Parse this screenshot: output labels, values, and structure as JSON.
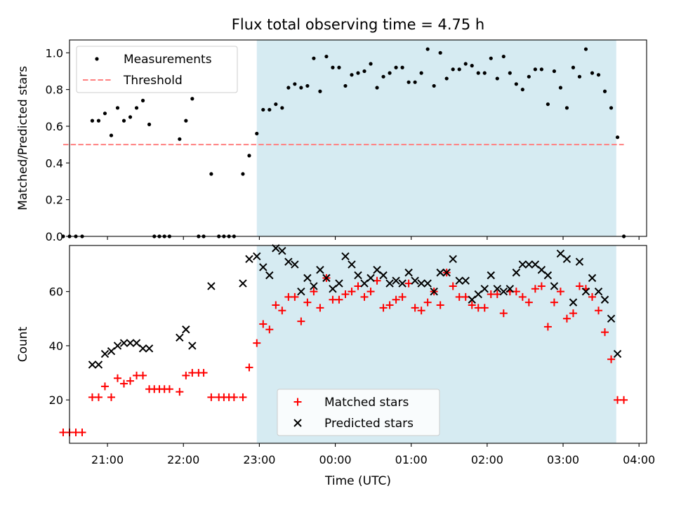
{
  "chart_data": [
    {
      "type": "scatter",
      "title": "Flux total observing time = 4.75 h",
      "xlabel": "",
      "ylabel": "Matched/Predicted stars",
      "x_unit": "hours since 20:00 UTC",
      "xlim": [
        20.5,
        28.1
      ],
      "ylim": [
        0.0,
        1.07
      ],
      "yticks": [
        0.0,
        0.2,
        0.4,
        0.6,
        0.8,
        1.0
      ],
      "ytick_labels": [
        "0.0",
        "0.2",
        "0.4",
        "0.6",
        "0.8",
        "1.0"
      ],
      "shaded_region": {
        "x_start": "22:58",
        "x_end": "03:42",
        "color": "#add8e6"
      },
      "threshold": {
        "name": "Threshold",
        "y": 0.5,
        "x_start": "20:25",
        "x_end": "03:48",
        "color": "#ff8080"
      },
      "legend": {
        "placement": "top-left",
        "entries": [
          "Measurements",
          "Threshold"
        ]
      },
      "series": [
        {
          "name": "Measurements",
          "color": "#000000",
          "points": [
            [
              "20:25",
              0
            ],
            [
              "20:30",
              0
            ],
            [
              "20:35",
              0
            ],
            [
              "20:40",
              0
            ],
            [
              "20:48",
              0.63
            ],
            [
              "20:53",
              0.63
            ],
            [
              "20:58",
              0.67
            ],
            [
              "21:03",
              0.55
            ],
            [
              "21:08",
              0.7
            ],
            [
              "21:13",
              0.63
            ],
            [
              "21:18",
              0.65
            ],
            [
              "21:23",
              0.7
            ],
            [
              "21:28",
              0.74
            ],
            [
              "21:33",
              0.61
            ],
            [
              "21:37",
              0
            ],
            [
              "21:41",
              0
            ],
            [
              "21:45",
              0
            ],
            [
              "21:49",
              0
            ],
            [
              "21:57",
              0.53
            ],
            [
              "22:02",
              0.63
            ],
            [
              "22:07",
              0.75
            ],
            [
              "22:12",
              0
            ],
            [
              "22:16",
              0
            ],
            [
              "22:22",
              0.34
            ],
            [
              "22:28",
              0
            ],
            [
              "22:32",
              0
            ],
            [
              "22:36",
              0
            ],
            [
              "22:40",
              0
            ],
            [
              "22:47",
              0.34
            ],
            [
              "22:52",
              0.44
            ],
            [
              "22:58",
              0.56
            ],
            [
              "23:03",
              0.69
            ],
            [
              "23:08",
              0.69
            ],
            [
              "23:13",
              0.72
            ],
            [
              "23:18",
              0.7
            ],
            [
              "23:23",
              0.81
            ],
            [
              "23:28",
              0.83
            ],
            [
              "23:33",
              0.81
            ],
            [
              "23:38",
              0.82
            ],
            [
              "23:43",
              0.97
            ],
            [
              "23:48",
              0.79
            ],
            [
              "23:53",
              0.98
            ],
            [
              "23:58",
              0.92
            ],
            [
              "00:03",
              0.92
            ],
            [
              "00:08",
              0.82
            ],
            [
              "00:13",
              0.88
            ],
            [
              "00:18",
              0.89
            ],
            [
              "00:23",
              0.9
            ],
            [
              "00:28",
              0.94
            ],
            [
              "00:33",
              0.81
            ],
            [
              "00:38",
              0.87
            ],
            [
              "00:43",
              0.89
            ],
            [
              "00:48",
              0.92
            ],
            [
              "00:53",
              0.92
            ],
            [
              "00:58",
              0.84
            ],
            [
              "01:03",
              0.84
            ],
            [
              "01:08",
              0.89
            ],
            [
              "01:13",
              1.02
            ],
            [
              "01:18",
              0.82
            ],
            [
              "01:23",
              1.0
            ],
            [
              "01:28",
              0.86
            ],
            [
              "01:33",
              0.91
            ],
            [
              "01:38",
              0.91
            ],
            [
              "01:43",
              0.94
            ],
            [
              "01:48",
              0.93
            ],
            [
              "01:53",
              0.89
            ],
            [
              "01:58",
              0.89
            ],
            [
              "02:03",
              0.97
            ],
            [
              "02:08",
              0.86
            ],
            [
              "02:13",
              0.98
            ],
            [
              "02:18",
              0.89
            ],
            [
              "02:23",
              0.83
            ],
            [
              "02:28",
              0.8
            ],
            [
              "02:33",
              0.87
            ],
            [
              "02:38",
              0.91
            ],
            [
              "02:43",
              0.91
            ],
            [
              "02:48",
              0.72
            ],
            [
              "02:53",
              0.9
            ],
            [
              "02:58",
              0.81
            ],
            [
              "03:03",
              0.7
            ],
            [
              "03:08",
              0.92
            ],
            [
              "03:13",
              0.87
            ],
            [
              "03:18",
              1.02
            ],
            [
              "03:23",
              0.89
            ],
            [
              "03:28",
              0.88
            ],
            [
              "03:33",
              0.79
            ],
            [
              "03:38",
              0.7
            ],
            [
              "03:43",
              0.54
            ],
            [
              "03:48",
              0
            ]
          ]
        }
      ]
    },
    {
      "type": "scatter",
      "title": "",
      "xlabel": "Time (UTC)",
      "ylabel": "Count",
      "x_unit": "hours since 20:00 UTC",
      "xlim": [
        20.5,
        28.1
      ],
      "ylim": [
        4,
        77
      ],
      "xticks": [
        "21:00",
        "22:00",
        "23:00",
        "00:00",
        "01:00",
        "02:00",
        "03:00",
        "04:00"
      ],
      "yticks": [
        20,
        40,
        60
      ],
      "ytick_labels": [
        "20",
        "40",
        "60"
      ],
      "shaded_region": {
        "x_start": "22:58",
        "x_end": "03:42",
        "color": "#add8e6"
      },
      "legend": {
        "placement": "lower-center",
        "entries": [
          "Matched stars",
          "Predicted stars"
        ]
      },
      "series": [
        {
          "name": "Matched stars",
          "marker": "plus",
          "color": "#ff0000",
          "points": [
            [
              "20:25",
              8
            ],
            [
              "20:30",
              8
            ],
            [
              "20:35",
              8
            ],
            [
              "20:40",
              8
            ],
            [
              "20:48",
              21
            ],
            [
              "20:53",
              21
            ],
            [
              "20:58",
              25
            ],
            [
              "21:03",
              21
            ],
            [
              "21:08",
              28
            ],
            [
              "21:13",
              26
            ],
            [
              "21:18",
              27
            ],
            [
              "21:23",
              29
            ],
            [
              "21:28",
              29
            ],
            [
              "21:33",
              24
            ],
            [
              "21:37",
              24
            ],
            [
              "21:41",
              24
            ],
            [
              "21:45",
              24
            ],
            [
              "21:49",
              24
            ],
            [
              "21:57",
              23
            ],
            [
              "22:02",
              29
            ],
            [
              "22:07",
              30
            ],
            [
              "22:12",
              30
            ],
            [
              "22:16",
              30
            ],
            [
              "22:22",
              21
            ],
            [
              "22:28",
              21
            ],
            [
              "22:32",
              21
            ],
            [
              "22:36",
              21
            ],
            [
              "22:40",
              21
            ],
            [
              "22:47",
              21
            ],
            [
              "22:52",
              32
            ],
            [
              "22:58",
              41
            ],
            [
              "23:03",
              48
            ],
            [
              "23:08",
              46
            ],
            [
              "23:13",
              55
            ],
            [
              "23:18",
              53
            ],
            [
              "23:23",
              58
            ],
            [
              "23:28",
              58
            ],
            [
              "23:33",
              49
            ],
            [
              "23:38",
              56
            ],
            [
              "23:43",
              60
            ],
            [
              "23:48",
              54
            ],
            [
              "23:53",
              65
            ],
            [
              "23:58",
              57
            ],
            [
              "00:03",
              57
            ],
            [
              "00:08",
              59
            ],
            [
              "00:13",
              60
            ],
            [
              "00:18",
              62
            ],
            [
              "00:23",
              58
            ],
            [
              "00:28",
              60
            ],
            [
              "00:33",
              64
            ],
            [
              "00:38",
              54
            ],
            [
              "00:43",
              55
            ],
            [
              "00:48",
              57
            ],
            [
              "00:53",
              58
            ],
            [
              "00:58",
              63
            ],
            [
              "01:03",
              54
            ],
            [
              "01:08",
              53
            ],
            [
              "01:13",
              56
            ],
            [
              "01:18",
              60
            ],
            [
              "01:23",
              55
            ],
            [
              "01:28",
              67
            ],
            [
              "01:33",
              62
            ],
            [
              "01:38",
              58
            ],
            [
              "01:43",
              58
            ],
            [
              "01:48",
              55
            ],
            [
              "01:53",
              54
            ],
            [
              "01:58",
              54
            ],
            [
              "02:03",
              59
            ],
            [
              "02:08",
              59
            ],
            [
              "02:13",
              52
            ],
            [
              "02:18",
              60
            ],
            [
              "02:23",
              60
            ],
            [
              "02:28",
              58
            ],
            [
              "02:33",
              56
            ],
            [
              "02:38",
              61
            ],
            [
              "02:43",
              62
            ],
            [
              "02:48",
              47
            ],
            [
              "02:53",
              56
            ],
            [
              "02:58",
              60
            ],
            [
              "03:03",
              50
            ],
            [
              "03:08",
              52
            ],
            [
              "03:13",
              62
            ],
            [
              "03:18",
              61
            ],
            [
              "03:23",
              58
            ],
            [
              "03:28",
              53
            ],
            [
              "03:33",
              45
            ],
            [
              "03:38",
              35
            ],
            [
              "03:43",
              20
            ],
            [
              "03:48",
              20
            ]
          ]
        },
        {
          "name": "Predicted stars",
          "marker": "x",
          "color": "#000000",
          "points": [
            [
              "20:48",
              33
            ],
            [
              "20:53",
              33
            ],
            [
              "20:58",
              37
            ],
            [
              "21:03",
              38
            ],
            [
              "21:08",
              40
            ],
            [
              "21:13",
              41
            ],
            [
              "21:18",
              41
            ],
            [
              "21:23",
              41
            ],
            [
              "21:28",
              39
            ],
            [
              "21:33",
              39
            ],
            [
              "21:57",
              43
            ],
            [
              "22:02",
              46
            ],
            [
              "22:07",
              40
            ],
            [
              "22:22",
              62
            ],
            [
              "22:47",
              63
            ],
            [
              "22:52",
              72
            ],
            [
              "22:58",
              73
            ],
            [
              "23:03",
              69
            ],
            [
              "23:08",
              66
            ],
            [
              "23:13",
              76
            ],
            [
              "23:18",
              75
            ],
            [
              "23:23",
              71
            ],
            [
              "23:28",
              70
            ],
            [
              "23:33",
              60
            ],
            [
              "23:38",
              65
            ],
            [
              "23:43",
              62
            ],
            [
              "23:48",
              68
            ],
            [
              "23:53",
              65
            ],
            [
              "23:58",
              61
            ],
            [
              "00:03",
              63
            ],
            [
              "00:08",
              73
            ],
            [
              "00:13",
              70
            ],
            [
              "00:18",
              66
            ],
            [
              "00:23",
              63
            ],
            [
              "00:28",
              65
            ],
            [
              "00:33",
              68
            ],
            [
              "00:38",
              66
            ],
            [
              "00:43",
              63
            ],
            [
              "00:48",
              64
            ],
            [
              "00:53",
              63
            ],
            [
              "00:58",
              67
            ],
            [
              "01:03",
              64
            ],
            [
              "01:08",
              63
            ],
            [
              "01:13",
              63
            ],
            [
              "01:18",
              60
            ],
            [
              "01:23",
              67
            ],
            [
              "01:28",
              67
            ],
            [
              "01:33",
              72
            ],
            [
              "01:38",
              64
            ],
            [
              "01:43",
              64
            ],
            [
              "01:48",
              57
            ],
            [
              "01:53",
              59
            ],
            [
              "01:58",
              61
            ],
            [
              "02:03",
              66
            ],
            [
              "02:08",
              61
            ],
            [
              "02:13",
              60
            ],
            [
              "02:18",
              61
            ],
            [
              "02:23",
              67
            ],
            [
              "02:28",
              70
            ],
            [
              "02:33",
              70
            ],
            [
              "02:38",
              70
            ],
            [
              "02:43",
              68
            ],
            [
              "02:48",
              66
            ],
            [
              "02:53",
              62
            ],
            [
              "02:58",
              74
            ],
            [
              "03:03",
              72
            ],
            [
              "03:08",
              56
            ],
            [
              "03:13",
              71
            ],
            [
              "03:18",
              60
            ],
            [
              "03:23",
              65
            ],
            [
              "03:28",
              60
            ],
            [
              "03:33",
              57
            ],
            [
              "03:38",
              50
            ],
            [
              "03:43",
              37
            ]
          ]
        }
      ]
    }
  ]
}
